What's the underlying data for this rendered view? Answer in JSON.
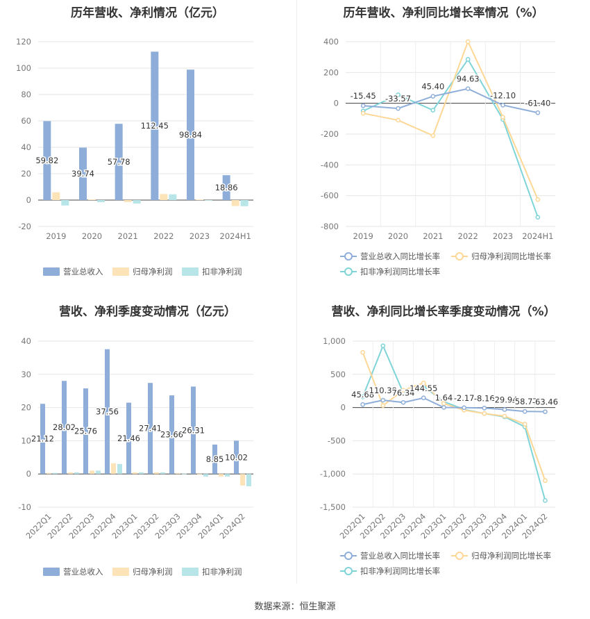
{
  "source_label": "数据来源：恒生聚源",
  "colors": {
    "rev": "#8eaed9",
    "np": "#fde3b8",
    "dnp": "#b7e5e8",
    "rev_line": "#8eaed9",
    "np_line": "#fdd796",
    "dnp_line": "#7fd4d8"
  },
  "chart_data": [
    {
      "type": "bar",
      "title": "历年营收、净利情况（亿元）",
      "categories": [
        "2019",
        "2020",
        "2021",
        "2022",
        "2023",
        "2024H1"
      ],
      "ylim": [
        -20,
        120
      ],
      "yticks": [
        -20,
        0,
        20,
        40,
        60,
        80,
        100,
        120
      ],
      "series": [
        {
          "name": "营业总收入",
          "values": [
            59.82,
            39.74,
            57.78,
            112.45,
            98.84,
            18.86
          ],
          "labels": [
            "59.82",
            "39.74",
            "57.78",
            "112.45",
            "98.84",
            "18.86"
          ]
        },
        {
          "name": "归母净利润",
          "values": [
            5.9,
            0.5,
            -1.5,
            4.6,
            0.4,
            -4.5
          ]
        },
        {
          "name": "扣非净利润",
          "values": [
            -4.1,
            -1.6,
            -2.6,
            4.4,
            -0.3,
            -4.6
          ]
        }
      ]
    },
    {
      "type": "line",
      "title": "历年营收、净利同比增长率情况（%）",
      "categories": [
        "2019",
        "2020",
        "2021",
        "2022",
        "2023",
        "2024H1"
      ],
      "ylim": [
        -800,
        400
      ],
      "yticks": [
        -800,
        -600,
        -400,
        -200,
        0,
        200,
        400
      ],
      "series": [
        {
          "name": "营业总收入同比增长率",
          "values": [
            -15.45,
            -33.57,
            45.4,
            94.63,
            -12.1,
            -61.4
          ],
          "labels": [
            "-15.45",
            "-33.57",
            "45.40",
            "94.63",
            "-12.10",
            "-61.40"
          ]
        },
        {
          "name": "归母净利润同比增长率",
          "values": [
            -65,
            -110,
            -210,
            400,
            -90,
            -625
          ]
        },
        {
          "name": "扣非净利润同比增长率",
          "values": [
            -50,
            55,
            -45,
            285,
            -105,
            -740
          ]
        }
      ]
    },
    {
      "type": "bar",
      "title": "营收、净利季度变动情况（亿元）",
      "categories": [
        "2022Q1",
        "2022Q2",
        "2022Q3",
        "2022Q4",
        "2023Q1",
        "2023Q2",
        "2023Q3",
        "2023Q4",
        "2024Q1",
        "2024Q2"
      ],
      "ylim": [
        -10,
        40
      ],
      "yticks": [
        -10,
        0,
        10,
        20,
        30,
        40
      ],
      "series": [
        {
          "name": "营业总收入",
          "values": [
            21.12,
            28.02,
            25.76,
            37.56,
            21.46,
            27.41,
            23.66,
            26.31,
            8.85,
            10.02
          ],
          "labels": [
            "21.12",
            "28.02",
            "25.76",
            "37.56",
            "21.46",
            "27.41",
            "23.66",
            "26.31",
            "8.85",
            "10.02"
          ]
        },
        {
          "name": "归母净利润",
          "values": [
            0.3,
            0.5,
            1.0,
            3.2,
            0.5,
            0.5,
            0.2,
            -0.2,
            -0.8,
            -3.5
          ]
        },
        {
          "name": "扣非净利润",
          "values": [
            0.3,
            0.5,
            1.0,
            3.0,
            0.5,
            0.5,
            0.1,
            -0.8,
            -0.8,
            -3.7
          ]
        }
      ]
    },
    {
      "type": "line",
      "title": "营收、净利同比增长率季度变动情况（%）",
      "categories": [
        "2022Q1",
        "2022Q2",
        "2022Q3",
        "2022Q4",
        "2023Q1",
        "2023Q2",
        "2023Q3",
        "2023Q4",
        "2024Q1",
        "2024Q2"
      ],
      "ylim": [
        -1500,
        1000
      ],
      "yticks": [
        -1500,
        -1000,
        -500,
        0,
        500,
        1000
      ],
      "ytick_labels": [
        "-1,500",
        "-1,000",
        "-500",
        "0",
        "500",
        "1,000"
      ],
      "series": [
        {
          "name": "营业总收入同比增长率",
          "values": [
            45.68,
            110.39,
            76.34,
            144.55,
            1.64,
            -2.17,
            -8.16,
            -29.94,
            -58.77,
            -63.46
          ],
          "labels": [
            "45.68",
            "110.39",
            "76.34",
            "144.55",
            "1.64",
            "-2.17",
            "-8.16",
            "-29.94",
            "-58.77",
            "-63.46"
          ]
        },
        {
          "name": "归母净利润同比增长率",
          "values": [
            830,
            30,
            260,
            370,
            60,
            -40,
            -90,
            -130,
            -250,
            -1100
          ]
        },
        {
          "name": "扣非净利润同比增长率",
          "values": [
            160,
            930,
            220,
            320,
            90,
            -30,
            -90,
            -140,
            -290,
            -1400
          ]
        }
      ]
    }
  ]
}
